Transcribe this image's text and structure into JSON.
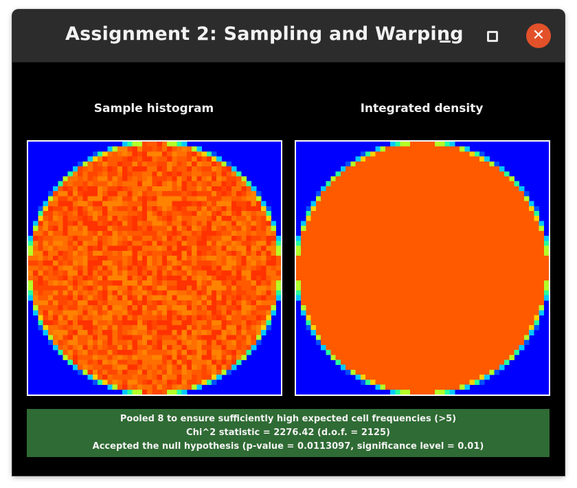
{
  "window": {
    "title": "Assignment 2: Sampling and Warping",
    "controls": {
      "minimize_icon": "minimize-icon",
      "maximize_icon": "maximize-icon",
      "close_icon": "close-icon",
      "close_glyph": "✕",
      "close_color": "#e2512a"
    }
  },
  "panels": {
    "left": {
      "title": "Sample histogram"
    },
    "right": {
      "title": "Integrated density"
    }
  },
  "grid": {
    "resolution": 51
  },
  "colors": {
    "background": "#0000ff",
    "uniform_density": "#ff5a00",
    "edge_ramp": [
      "#0050ff",
      "#00c8ff",
      "#28ff9c",
      "#b4ff28",
      "#ffd200"
    ],
    "noise_palette": [
      "#ff3200",
      "#ff4600",
      "#ff5a00",
      "#ff6e00",
      "#ff8200"
    ]
  },
  "status": {
    "color": "#2f6b34",
    "line1": "Pooled 8 to ensure sufficiently high expected cell frequencies (>5)",
    "line2": "Chi^2 statistic = 2276.42 (d.o.f. = 2125)",
    "line3": "Accepted the null hypothesis (p-value = 0.0113097, significance level = 0.01)"
  }
}
